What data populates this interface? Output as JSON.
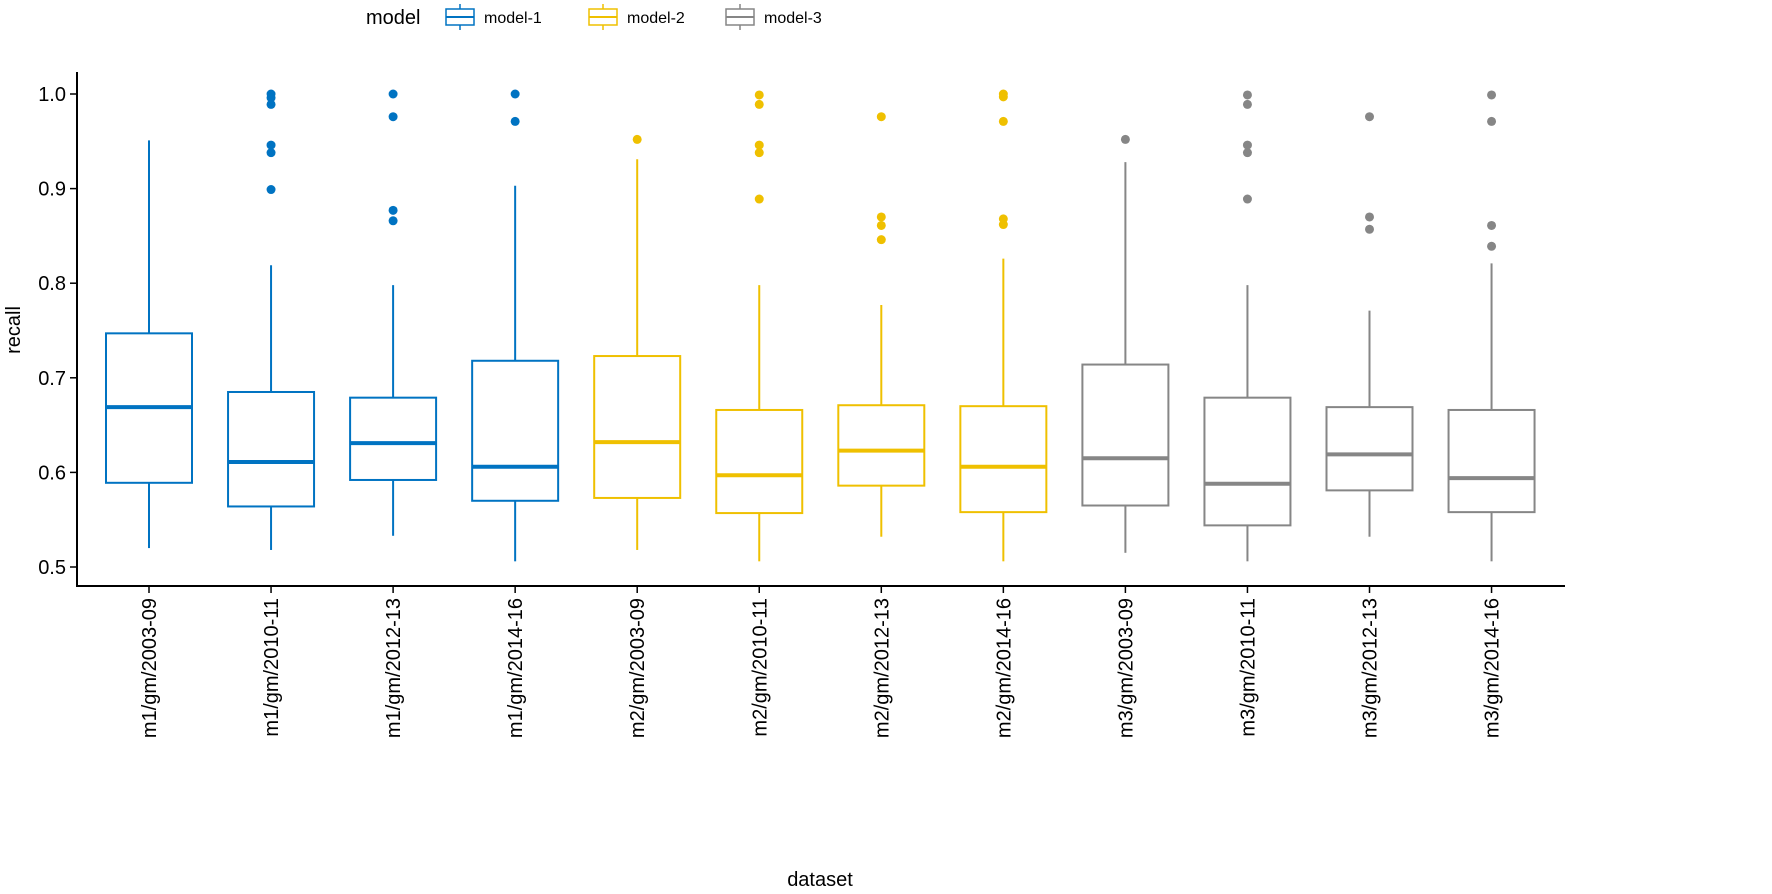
{
  "chart_data": {
    "type": "boxplot",
    "title": "",
    "xlabel": "dataset",
    "ylabel": "recall",
    "ylim": [
      0.48,
      1.025
    ],
    "yticks": [
      0.5,
      0.6,
      0.7,
      0.8,
      0.9,
      1.0
    ],
    "ytick_labels": [
      "0.5",
      "0.6",
      "0.7",
      "0.8",
      "0.9",
      "1.0"
    ],
    "grid": false,
    "legend": {
      "title": "model",
      "placement": "top",
      "entries": [
        {
          "label": "model-1",
          "color": "#0073C2"
        },
        {
          "label": "model-2",
          "color": "#EFC000"
        },
        {
          "label": "model-3",
          "color": "#868686"
        }
      ]
    },
    "categories": [
      "m1/gm/2003-09",
      "m1/gm/2010-11",
      "m1/gm/2012-13",
      "m1/gm/2014-16",
      "m2/gm/2003-09",
      "m2/gm/2010-11",
      "m2/gm/2012-13",
      "m2/gm/2014-16",
      "m3/gm/2003-09",
      "m3/gm/2010-11",
      "m3/gm/2012-13",
      "m3/gm/2014-16"
    ],
    "boxes": [
      {
        "model": "model-1",
        "lower": 0.52,
        "q1": 0.589,
        "median": 0.669,
        "q3": 0.747,
        "upper": 0.951,
        "outliers": []
      },
      {
        "model": "model-1",
        "lower": 0.518,
        "q1": 0.564,
        "median": 0.611,
        "q3": 0.685,
        "upper": 0.819,
        "outliers": [
          1.0,
          0.996,
          0.989,
          0.946,
          0.938,
          0.899
        ]
      },
      {
        "model": "model-1",
        "lower": 0.533,
        "q1": 0.592,
        "median": 0.631,
        "q3": 0.679,
        "upper": 0.798,
        "outliers": [
          1.0,
          0.976,
          0.877,
          0.866
        ]
      },
      {
        "model": "model-1",
        "lower": 0.506,
        "q1": 0.57,
        "median": 0.606,
        "q3": 0.718,
        "upper": 0.903,
        "outliers": [
          1.0,
          0.971
        ]
      },
      {
        "model": "model-2",
        "lower": 0.518,
        "q1": 0.573,
        "median": 0.632,
        "q3": 0.723,
        "upper": 0.931,
        "outliers": [
          0.952
        ]
      },
      {
        "model": "model-2",
        "lower": 0.506,
        "q1": 0.557,
        "median": 0.597,
        "q3": 0.666,
        "upper": 0.798,
        "outliers": [
          0.999,
          0.989,
          0.946,
          0.938,
          0.889
        ]
      },
      {
        "model": "model-2",
        "lower": 0.532,
        "q1": 0.586,
        "median": 0.623,
        "q3": 0.671,
        "upper": 0.777,
        "outliers": [
          0.976,
          0.87,
          0.861,
          0.846
        ]
      },
      {
        "model": "model-2",
        "lower": 0.506,
        "q1": 0.558,
        "median": 0.606,
        "q3": 0.67,
        "upper": 0.826,
        "outliers": [
          1.0,
          0.997,
          0.971,
          0.868,
          0.862
        ]
      },
      {
        "model": "model-3",
        "lower": 0.515,
        "q1": 0.565,
        "median": 0.615,
        "q3": 0.714,
        "upper": 0.928,
        "outliers": [
          0.952
        ]
      },
      {
        "model": "model-3",
        "lower": 0.506,
        "q1": 0.544,
        "median": 0.588,
        "q3": 0.679,
        "upper": 0.798,
        "outliers": [
          0.999,
          0.989,
          0.946,
          0.938,
          0.889
        ]
      },
      {
        "model": "model-3",
        "lower": 0.532,
        "q1": 0.581,
        "median": 0.619,
        "q3": 0.669,
        "upper": 0.771,
        "outliers": [
          0.976,
          0.87,
          0.857
        ]
      },
      {
        "model": "model-3",
        "lower": 0.506,
        "q1": 0.558,
        "median": 0.594,
        "q3": 0.666,
        "upper": 0.821,
        "outliers": [
          0.999,
          0.971,
          0.861,
          0.839
        ]
      }
    ]
  }
}
